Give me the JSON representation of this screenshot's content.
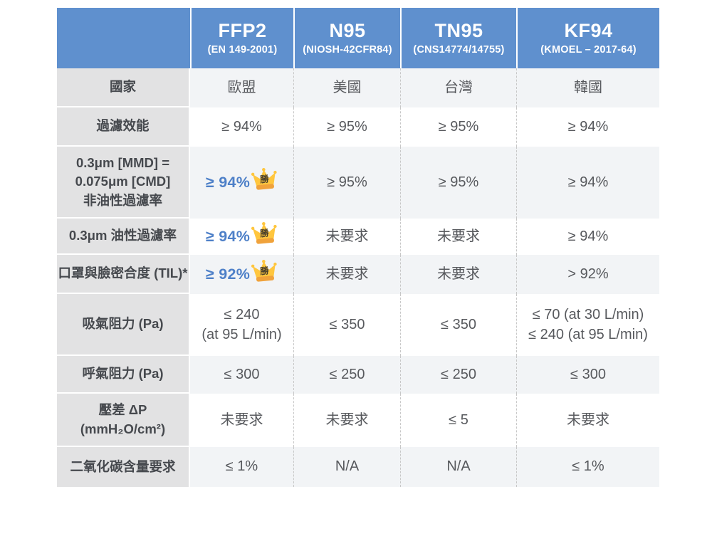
{
  "header": {
    "columns": [
      {
        "name": "FFP2",
        "standard": "(EN 149-2001)"
      },
      {
        "name": "N95",
        "standard": "(NIOSH-42CFR84)"
      },
      {
        "name": "TN95",
        "standard": "(CNS14774/14755)"
      },
      {
        "name": "KF94",
        "standard": "(KMOEL – 2017-64)"
      }
    ]
  },
  "badge": {
    "text": "勝"
  },
  "rows": [
    {
      "label_lines": [
        "國家"
      ],
      "cells": [
        {
          "lines": [
            "歐盟"
          ]
        },
        {
          "lines": [
            "美國"
          ]
        },
        {
          "lines": [
            "台灣"
          ]
        },
        {
          "lines": [
            "韓國"
          ]
        }
      ]
    },
    {
      "label_lines": [
        "過濾效能"
      ],
      "cells": [
        {
          "lines": [
            "≥ 94%"
          ]
        },
        {
          "lines": [
            "≥ 95%"
          ]
        },
        {
          "lines": [
            "≥ 95%"
          ]
        },
        {
          "lines": [
            "≥ 94%"
          ]
        }
      ]
    },
    {
      "label_lines": [
        "0.3μm [MMD] =",
        "0.075μm [CMD]",
        "非油性過濾率"
      ],
      "cells": [
        {
          "lines": [
            "≥ 94%"
          ],
          "winner": true
        },
        {
          "lines": [
            "≥ 95%"
          ]
        },
        {
          "lines": [
            "≥ 95%"
          ]
        },
        {
          "lines": [
            "≥ 94%"
          ]
        }
      ]
    },
    {
      "label_lines": [
        "0.3μm 油性過濾率"
      ],
      "cells": [
        {
          "lines": [
            "≥ 94%"
          ],
          "winner": true
        },
        {
          "lines": [
            "未要求"
          ]
        },
        {
          "lines": [
            "未要求"
          ]
        },
        {
          "lines": [
            "≥ 94%"
          ]
        }
      ]
    },
    {
      "label_lines": [
        "口罩與臉密合度 (TIL)*"
      ],
      "cells": [
        {
          "lines": [
            "≥ 92%"
          ],
          "winner": true
        },
        {
          "lines": [
            "未要求"
          ]
        },
        {
          "lines": [
            "未要求"
          ]
        },
        {
          "lines": [
            "> 92%"
          ]
        }
      ]
    },
    {
      "label_lines": [
        "吸氣阻力 (Pa)"
      ],
      "cells": [
        {
          "lines": [
            "≤ 240",
            "(at 95 L/min)"
          ]
        },
        {
          "lines": [
            "≤ 350"
          ]
        },
        {
          "lines": [
            "≤ 350"
          ]
        },
        {
          "lines": [
            "≤ 70 (at 30 L/min)",
            "≤ 240 (at 95 L/min)"
          ]
        }
      ]
    },
    {
      "label_lines": [
        "呼氣阻力 (Pa)"
      ],
      "cells": [
        {
          "lines": [
            "≤ 300"
          ]
        },
        {
          "lines": [
            "≤ 250"
          ]
        },
        {
          "lines": [
            "≤ 250"
          ]
        },
        {
          "lines": [
            "≤ 300"
          ]
        }
      ]
    },
    {
      "label_lines": [
        "壓差 ΔP",
        "(mmH₂O/cm²)"
      ],
      "cells": [
        {
          "lines": [
            "未要求"
          ]
        },
        {
          "lines": [
            "未要求"
          ]
        },
        {
          "lines": [
            "≤ 5"
          ]
        },
        {
          "lines": [
            "未要求"
          ]
        }
      ]
    },
    {
      "label_lines": [
        "二氧化碳含量要求"
      ],
      "cells": [
        {
          "lines": [
            "≤ 1%"
          ]
        },
        {
          "lines": [
            "N/A"
          ]
        },
        {
          "lines": [
            "N/A"
          ]
        },
        {
          "lines": [
            "≤ 1%"
          ]
        }
      ]
    }
  ],
  "colors": {
    "header_bg": "#5F90CE",
    "header_text": "#FFFFFF",
    "label_bg": "#E2E2E3",
    "stripe_bg": "#F2F4F6",
    "row_bg": "#FFFFFF",
    "value_text": "#57595D",
    "label_text": "#46494E",
    "winner_text": "#4E80C8",
    "crown_gold": "#FFC63E",
    "crown_base": "#F0A23B",
    "dash_line": "#C7C7C7",
    "page_bg": "#FFFFFF"
  }
}
